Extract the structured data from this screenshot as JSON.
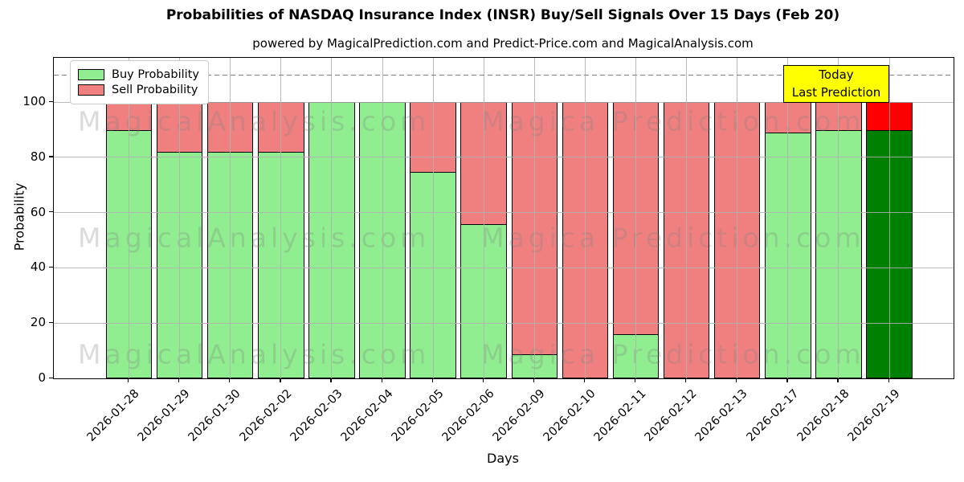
{
  "title": "Probabilities of NASDAQ Insurance Index (INSR) Buy/Sell Signals Over 15 Days (Feb 20)",
  "subtitle": "powered by MagicalPrediction.com and Predict-Price.com and MagicalAnalysis.com",
  "legend": {
    "items": [
      {
        "label": "Buy Probability",
        "color": "#90EE90"
      },
      {
        "label": "Sell Probability",
        "color": "#F08080"
      }
    ]
  },
  "annotation": {
    "line1": "Today",
    "line2": "Last Prediction",
    "bg_color": "#FFFF00"
  },
  "watermark": {
    "left": "MagicalAnalysis.com",
    "right": "Magica Prediction.com"
  },
  "colors": {
    "buy": "#90EE90",
    "sell": "#F08080",
    "today_buy": "#008000",
    "today_sell": "#FF0000",
    "grid": "#b0b0b0",
    "dashed_line": "#7f7f7f",
    "annotation_bg": "#FFFF00"
  },
  "chart_data": {
    "type": "bar",
    "stacked": true,
    "title": "Probabilities of NASDAQ Insurance Index (INSR) Buy/Sell Signals Over 15 Days (Feb 20)",
    "xlabel": "Days",
    "ylabel": "Probability",
    "categories": [
      "2026-01-28",
      "2026-01-29",
      "2026-01-30",
      "2026-02-02",
      "2026-02-03",
      "2026-02-04",
      "2026-02-05",
      "2026-02-06",
      "2026-02-09",
      "2026-02-10",
      "2026-02-11",
      "2026-02-12",
      "2026-02-13",
      "2026-02-17",
      "2026-02-18",
      "2026-02-19"
    ],
    "series": [
      {
        "name": "Buy Probability",
        "color": "#90EE90",
        "values": [
          90,
          82,
          82,
          82,
          100,
          100,
          75,
          56,
          9,
          0,
          16,
          0,
          0,
          89,
          90,
          90
        ]
      },
      {
        "name": "Sell Probability",
        "color": "#F08080",
        "values": [
          10,
          18,
          18,
          18,
          0,
          0,
          25,
          44,
          91,
          100,
          84,
          100,
          100,
          11,
          10,
          10
        ]
      }
    ],
    "today_index": 15,
    "today_colors": {
      "buy": "#008000",
      "sell": "#FF0000"
    },
    "yticks": [
      0,
      20,
      40,
      60,
      80,
      100
    ],
    "ylim": [
      0,
      116
    ],
    "dashed_line_y": 110,
    "grid": true,
    "legend_position": "upper left"
  }
}
